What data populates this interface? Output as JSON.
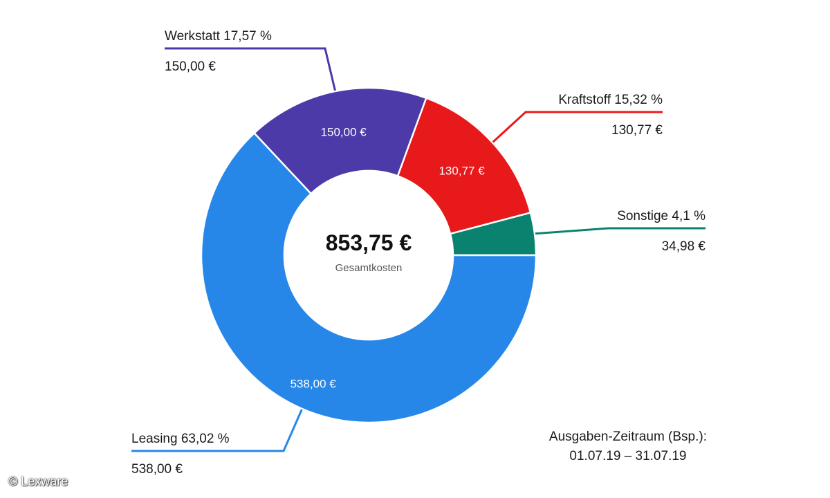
{
  "chart_data": {
    "type": "pie",
    "center_value": "853,75 €",
    "center_label": "Gesamtkosten",
    "slices": [
      {
        "name": "Sonstige",
        "value": 34.98,
        "value_label": "34,98 €",
        "percent_label": "4,1 %",
        "color": "#0a8270"
      },
      {
        "name": "Kraftstoff",
        "value": 130.77,
        "value_label": "130,77 €",
        "percent_label": "15,32 %",
        "color": "#e8191b"
      },
      {
        "name": "Werkstatt",
        "value": 150.0,
        "value_label": "150,00 €",
        "percent_label": "17,57 %",
        "color": "#4b3aa8"
      },
      {
        "name": "Leasing",
        "value": 538.0,
        "value_label": "538,00 €",
        "percent_label": "63,02 %",
        "color": "#2787e8"
      }
    ]
  },
  "period": {
    "line1": "Ausgaben-Zeitraum (Bsp.):",
    "line2": "01.07.19 – 31.07.19"
  },
  "copyright": "© Lexware"
}
